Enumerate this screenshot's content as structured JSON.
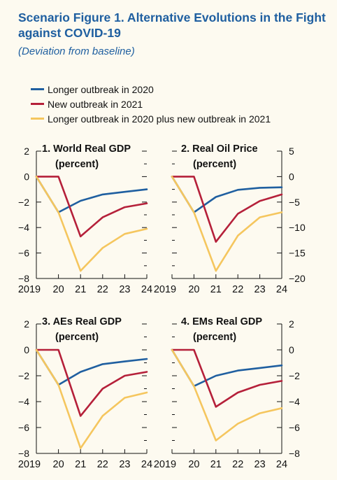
{
  "figure": {
    "title": "Scenario Figure 1. Alternative Evolutions in the Fight against COVID-19",
    "subtitle": "(Deviation from baseline)"
  },
  "legend": [
    {
      "label": "Longer outbreak in 2020",
      "color": "#1f5fa0"
    },
    {
      "label": "New outbreak in 2021",
      "color": "#b5203a"
    },
    {
      "label": "Longer outbreak in 2020 plus new outbreak in 2021",
      "color": "#f5c65e"
    }
  ],
  "colors": {
    "axis": "#111111",
    "title": "#1f5fa0"
  },
  "chart_data": [
    {
      "type": "line",
      "title": "1. World Real GDP",
      "subtitle": "(percent)",
      "x": [
        "2019",
        "20",
        "21",
        "22",
        "23",
        "24"
      ],
      "axis_side": "left",
      "ylim": [
        -8,
        2
      ],
      "yticks": [
        "2",
        "0",
        "−2",
        "−4",
        "−6",
        "−8"
      ],
      "ytick_values": [
        2,
        0,
        -2,
        -4,
        -6,
        -8
      ],
      "series": [
        {
          "name": "Longer outbreak in 2020",
          "values": [
            0,
            -2.8,
            -1.9,
            -1.4,
            -1.2,
            -1.0
          ]
        },
        {
          "name": "New outbreak in 2021",
          "values": [
            0,
            0,
            -4.7,
            -3.2,
            -2.4,
            -2.1
          ]
        },
        {
          "name": "Longer outbreak in 2020 plus new outbreak in 2021",
          "values": [
            0,
            -2.8,
            -7.4,
            -5.6,
            -4.5,
            -4.1
          ]
        }
      ]
    },
    {
      "type": "line",
      "title": "2. Real Oil Price",
      "subtitle": "(percent)",
      "x": [
        "2019",
        "20",
        "21",
        "22",
        "23",
        "24"
      ],
      "axis_side": "right",
      "ylim": [
        -20,
        5
      ],
      "yticks": [
        "5",
        "0",
        "−5",
        "−10",
        "−15",
        "−20"
      ],
      "ytick_values": [
        5,
        0,
        -5,
        -10,
        -15,
        -20
      ],
      "series": [
        {
          "name": "Longer outbreak in 2020",
          "values": [
            0,
            -7.0,
            -4.0,
            -2.6,
            -2.2,
            -2.1
          ]
        },
        {
          "name": "New outbreak in 2021",
          "values": [
            0,
            0,
            -12.8,
            -7.3,
            -4.8,
            -3.5
          ]
        },
        {
          "name": "Longer outbreak in 2020 plus new outbreak in 2021",
          "values": [
            0,
            -7.0,
            -18.5,
            -11.6,
            -8.0,
            -7.0
          ]
        }
      ]
    },
    {
      "type": "line",
      "title": "3. AEs Real GDP",
      "subtitle": "(percent)",
      "x": [
        "2019",
        "20",
        "21",
        "22",
        "23",
        "24"
      ],
      "axis_side": "left",
      "ylim": [
        -8,
        2
      ],
      "yticks": [
        "2",
        "0",
        "−2",
        "−4",
        "−6",
        "−8"
      ],
      "ytick_values": [
        2,
        0,
        -2,
        -4,
        -6,
        -8
      ],
      "series": [
        {
          "name": "Longer outbreak in 2020",
          "values": [
            0,
            -2.7,
            -1.7,
            -1.1,
            -0.9,
            -0.7
          ]
        },
        {
          "name": "New outbreak in 2021",
          "values": [
            0,
            0,
            -5.1,
            -3.0,
            -2.0,
            -1.7
          ]
        },
        {
          "name": "Longer outbreak in 2020 plus new outbreak in 2021",
          "values": [
            0,
            -2.7,
            -7.6,
            -5.1,
            -3.7,
            -3.3
          ]
        }
      ]
    },
    {
      "type": "line",
      "title": "4. EMs Real GDP",
      "subtitle": "(percent)",
      "x": [
        "2019",
        "20",
        "21",
        "22",
        "23",
        "24"
      ],
      "axis_side": "right",
      "ylim": [
        -8,
        2
      ],
      "yticks": [
        "2",
        "0",
        "−2",
        "−4",
        "−6",
        "−8"
      ],
      "ytick_values": [
        2,
        0,
        -2,
        -4,
        -6,
        -8
      ],
      "series": [
        {
          "name": "Longer outbreak in 2020",
          "values": [
            0,
            -2.8,
            -2.0,
            -1.6,
            -1.4,
            -1.2
          ]
        },
        {
          "name": "New outbreak in 2021",
          "values": [
            0,
            0,
            -4.4,
            -3.3,
            -2.7,
            -2.4
          ]
        },
        {
          "name": "Longer outbreak in 2020 plus new outbreak in 2021",
          "values": [
            0,
            -2.8,
            -7.0,
            -5.7,
            -4.9,
            -4.5
          ]
        }
      ]
    }
  ]
}
